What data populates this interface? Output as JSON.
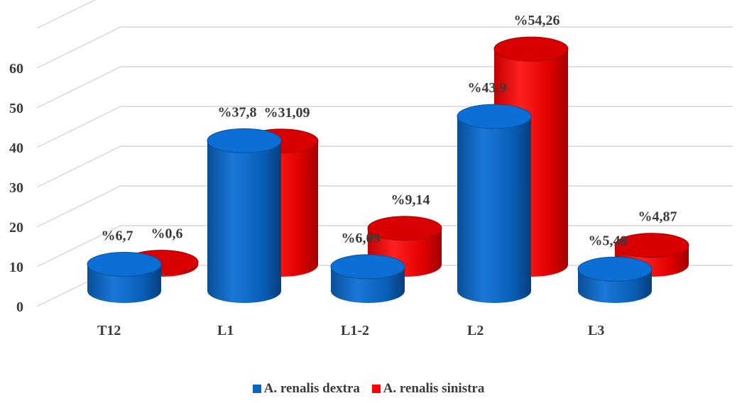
{
  "chart_data": {
    "type": "bar",
    "style": "3d-cylinder",
    "categories": [
      "T12",
      "L1",
      "L1-2",
      "L2",
      "L3"
    ],
    "series": [
      {
        "name": "A. renalis dextra",
        "color": "#0a64c2",
        "values": [
          6.7,
          37.8,
          6.09,
          43.9,
          5.48
        ],
        "labels": [
          "%6,7",
          "%37,8",
          "%6,09",
          "%43,9",
          "%5,48"
        ]
      },
      {
        "name": "A. renalis sinistra",
        "color": "#ff0000",
        "values": [
          0.6,
          31.09,
          9.14,
          54.26,
          4.87
        ],
        "labels": [
          "%0,6",
          "%31,09",
          "%9,14",
          "%54,26",
          "%4,87"
        ]
      }
    ],
    "y_ticks": [
      "0",
      "10",
      "20",
      "30",
      "40",
      "50",
      "60"
    ],
    "ylim": [
      0,
      70
    ],
    "grid": true,
    "legend_position": "bottom"
  }
}
